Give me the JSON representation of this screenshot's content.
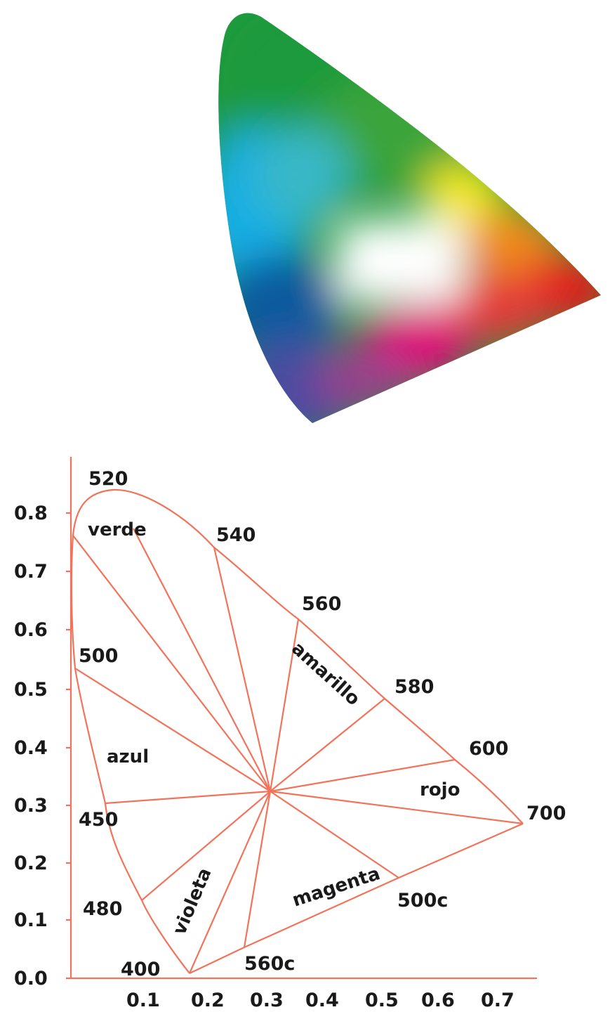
{
  "colors": {
    "line": "#f2735a",
    "green": "#1f9a3c",
    "cyan": "#12aee4",
    "blue": "#0e4d92",
    "violet": "#4b4ba0",
    "magenta": "#e0107a",
    "red": "#e41a1c",
    "yellow": "#f4e81a",
    "white": "#ffffff"
  },
  "diagram": {
    "y_ticks": [
      "0.0",
      "0.1",
      "0.2",
      "0.3",
      "0.4",
      "0.5",
      "0.6",
      "0.7",
      "0.8"
    ],
    "x_ticks": [
      "0.1",
      "0.2",
      "0.3",
      "0.4",
      "0.5",
      "0.6",
      "0.7"
    ],
    "wavelengths": {
      "w520": "520",
      "w540": "540",
      "w560": "560",
      "w580": "580",
      "w600": "600",
      "w700": "700",
      "w500": "500",
      "w450": "450",
      "w480": "480",
      "w400": "400",
      "w560c": "560c",
      "w500c": "500c"
    },
    "regions": {
      "verde": "verde",
      "amarillo": "amarillo",
      "azul": "azul",
      "rojo": "rojo",
      "violeta": "violeta",
      "magenta": "magenta"
    }
  }
}
